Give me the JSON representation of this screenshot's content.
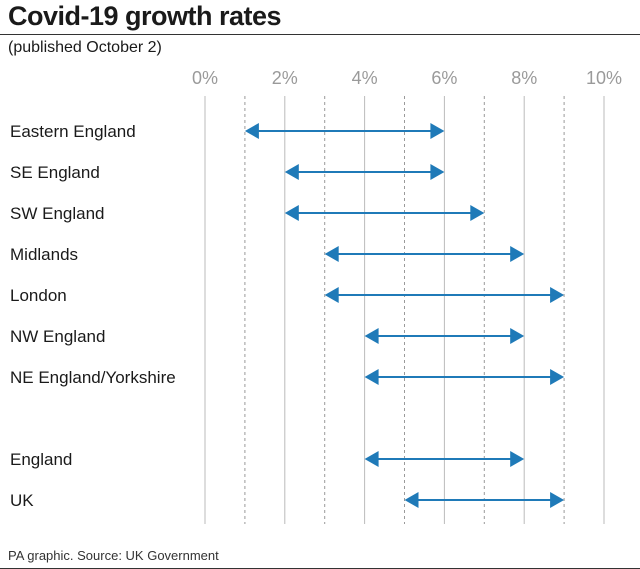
{
  "header": {
    "title": "Covid-19 growth rates",
    "subtitle": "(published October 2)"
  },
  "footer": {
    "source": "PA graphic. Source: UK Government"
  },
  "colors": {
    "range": "#1f7ab8",
    "solid_grid": "#bbbbbb",
    "dashed_grid": "#9a9a9a"
  },
  "chart_data": {
    "type": "range",
    "x_tick_labels": [
      "0%",
      "2%",
      "4%",
      "6%",
      "8%",
      "10%"
    ],
    "xlim": [
      0,
      10
    ],
    "grid": true,
    "categories": [
      "Eastern England",
      "SE England",
      "SW England",
      "Midlands",
      "London",
      "NW England",
      "NE England/Yorkshire",
      "England",
      "UK"
    ],
    "ranges": [
      {
        "low": 1,
        "high": 6
      },
      {
        "low": 2,
        "high": 6
      },
      {
        "low": 2,
        "high": 7
      },
      {
        "low": 3,
        "high": 8
      },
      {
        "low": 3,
        "high": 9
      },
      {
        "low": 4,
        "high": 8
      },
      {
        "low": 4,
        "high": 9
      },
      {
        "low": 4,
        "high": 8
      },
      {
        "low": 5,
        "high": 9
      }
    ]
  }
}
